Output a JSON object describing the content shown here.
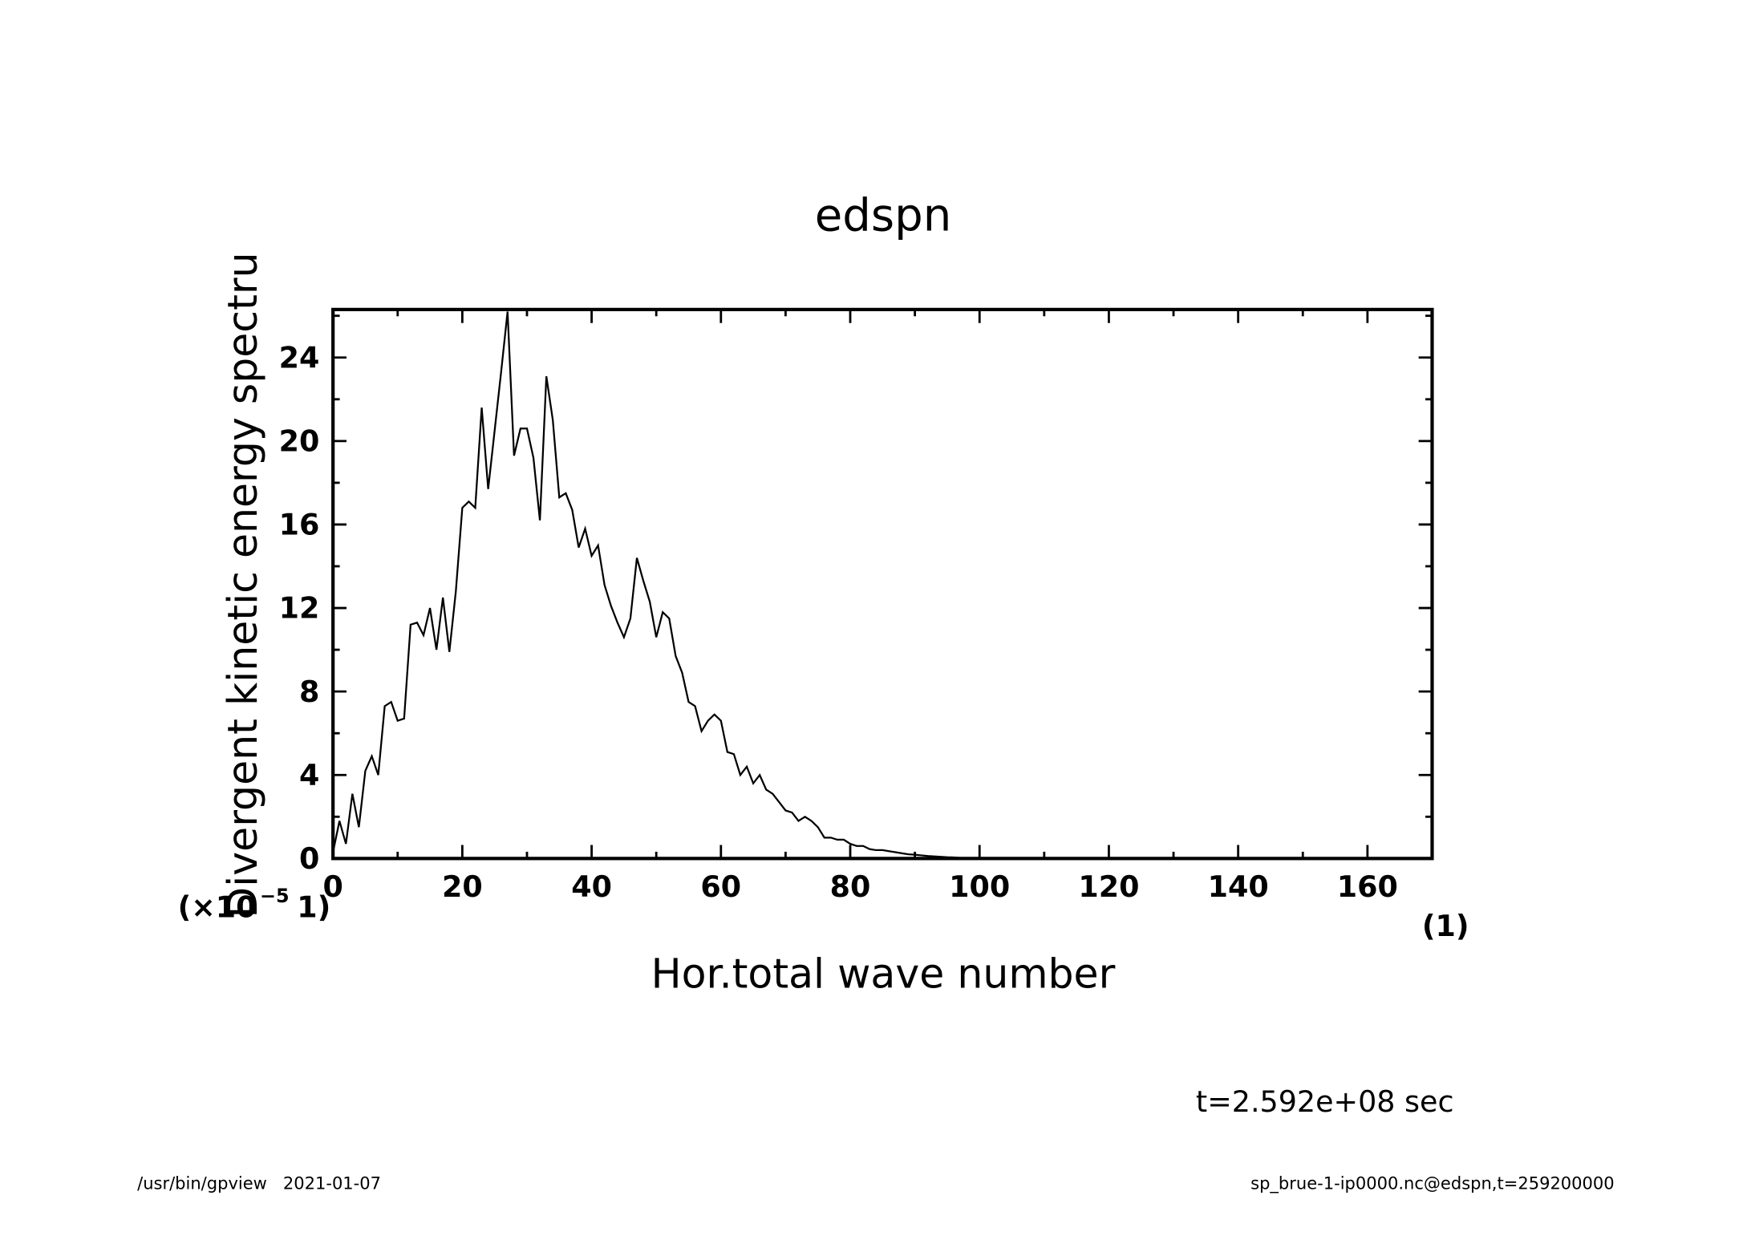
{
  "chart_data": {
    "type": "line",
    "title": "edspn",
    "x_label": "Hor.total wave number",
    "y_label": "Divergent kinetic energy spectru",
    "y_unit_prefix": "(×10",
    "y_unit_exponent": "−5",
    "y_unit_suffix": "1)",
    "x_unit": "(1)",
    "annotation": "t=2.592e+08 sec",
    "footer_left": "/usr/bin/gpview   2021-01-07",
    "footer_right": "sp_brue-1-ip0000.nc@edspn,t=259200000",
    "xlim": [
      0,
      170
    ],
    "xticks": [
      0,
      20,
      40,
      60,
      80,
      100,
      120,
      140,
      160
    ],
    "ylim": [
      0,
      26.3
    ],
    "yticks": [
      0,
      4,
      8,
      12,
      16,
      20,
      24
    ],
    "series": [
      {
        "color": "#000000",
        "x": [
          0,
          1,
          2,
          3,
          4,
          5,
          6,
          7,
          8,
          9,
          10,
          11,
          12,
          13,
          14,
          15,
          16,
          17,
          18,
          19,
          20,
          21,
          22,
          23,
          24,
          25,
          26,
          27,
          28,
          29,
          30,
          31,
          32,
          33,
          34,
          35,
          36,
          37,
          38,
          39,
          40,
          41,
          42,
          43,
          44,
          45,
          46,
          47,
          48,
          49,
          50,
          51,
          52,
          53,
          54,
          55,
          56,
          57,
          58,
          59,
          60,
          61,
          62,
          63,
          64,
          65,
          66,
          67,
          68,
          69,
          70,
          71,
          72,
          73,
          74,
          75,
          76,
          77,
          78,
          79,
          80,
          81,
          82,
          83,
          84,
          85,
          86,
          87,
          88,
          89,
          90,
          91,
          92,
          93,
          94,
          95,
          96,
          97,
          98,
          99,
          100
        ],
        "values": [
          0.3,
          1.8,
          0.7,
          3.1,
          1.5,
          4.2,
          4.9,
          4.0,
          7.3,
          7.5,
          6.6,
          6.7,
          11.2,
          11.3,
          10.7,
          12.0,
          10.0,
          12.5,
          9.9,
          12.8,
          16.8,
          17.1,
          16.8,
          21.6,
          17.7,
          20.5,
          23.3,
          26.2,
          19.3,
          20.6,
          20.6,
          19.2,
          16.2,
          23.1,
          21.0,
          17.3,
          17.5,
          16.7,
          14.9,
          15.8,
          14.5,
          15.0,
          13.1,
          12.1,
          11.3,
          10.6,
          11.5,
          14.4,
          13.3,
          12.3,
          10.6,
          11.8,
          11.5,
          9.7,
          8.9,
          7.5,
          7.3,
          6.1,
          6.6,
          6.9,
          6.6,
          5.1,
          5.0,
          4.0,
          4.4,
          3.6,
          4.0,
          3.3,
          3.1,
          2.7,
          2.3,
          2.2,
          1.8,
          2.0,
          1.8,
          1.5,
          1.0,
          1.0,
          0.9,
          0.9,
          0.7,
          0.6,
          0.6,
          0.45,
          0.4,
          0.4,
          0.35,
          0.3,
          0.25,
          0.2,
          0.18,
          0.15,
          0.12,
          0.1,
          0.08,
          0.06,
          0.05,
          0.03,
          0.02,
          0.01,
          0.0
        ]
      }
    ]
  }
}
